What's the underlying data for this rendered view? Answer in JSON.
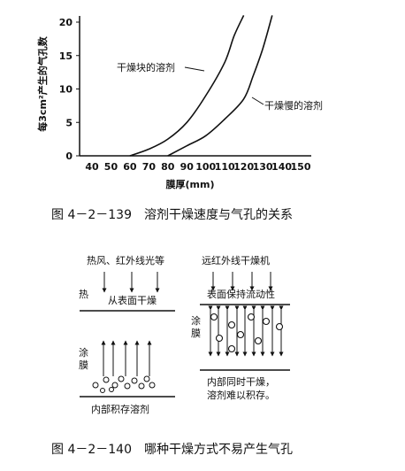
{
  "figure1": {
    "caption": "图 4－2－139　溶剂干燥速度与气孔的关系",
    "chart_data": {
      "type": "line",
      "xlabel": "膜厚(mm)",
      "ylabel": "每3cm²产生的气孔数",
      "x_ticks": [
        "40",
        "50",
        "60",
        "70",
        "80",
        "90",
        "100",
        "110",
        "120",
        "130",
        "140",
        "150"
      ],
      "y_ticks": [
        "0",
        "5",
        "10",
        "15",
        "20"
      ],
      "xlim": [
        30,
        150
      ],
      "ylim": [
        0,
        20
      ],
      "series": [
        {
          "name": "干燥块的溶剂",
          "x": [
            60,
            70,
            80,
            90,
            100,
            110,
            115,
            120
          ],
          "y": [
            0,
            1,
            2.5,
            5,
            9,
            14,
            18,
            21
          ]
        },
        {
          "name": "干燥慢的溶剂",
          "x": [
            80,
            90,
            100,
            110,
            120,
            125,
            130,
            135
          ],
          "y": [
            0,
            1.5,
            3,
            5.5,
            8.5,
            12,
            16,
            21
          ]
        }
      ]
    }
  },
  "figure2": {
    "caption": "图 4－2－140　哪种干燥方式不易产生气孔",
    "left": {
      "top_label": "热风、红外线光等",
      "side_label_top": "热",
      "surface_label": "从表面干燥",
      "side_label_mid": "涂膜",
      "bottom_label": "内部积存溶剂"
    },
    "right": {
      "top_label": "远红外线干燥机",
      "surface_label": "表面保持流动性",
      "side_label": "涂膜",
      "bottom_label_line1": "内部同时干燥，",
      "bottom_label_line2": "溶剂难以积存。"
    }
  }
}
